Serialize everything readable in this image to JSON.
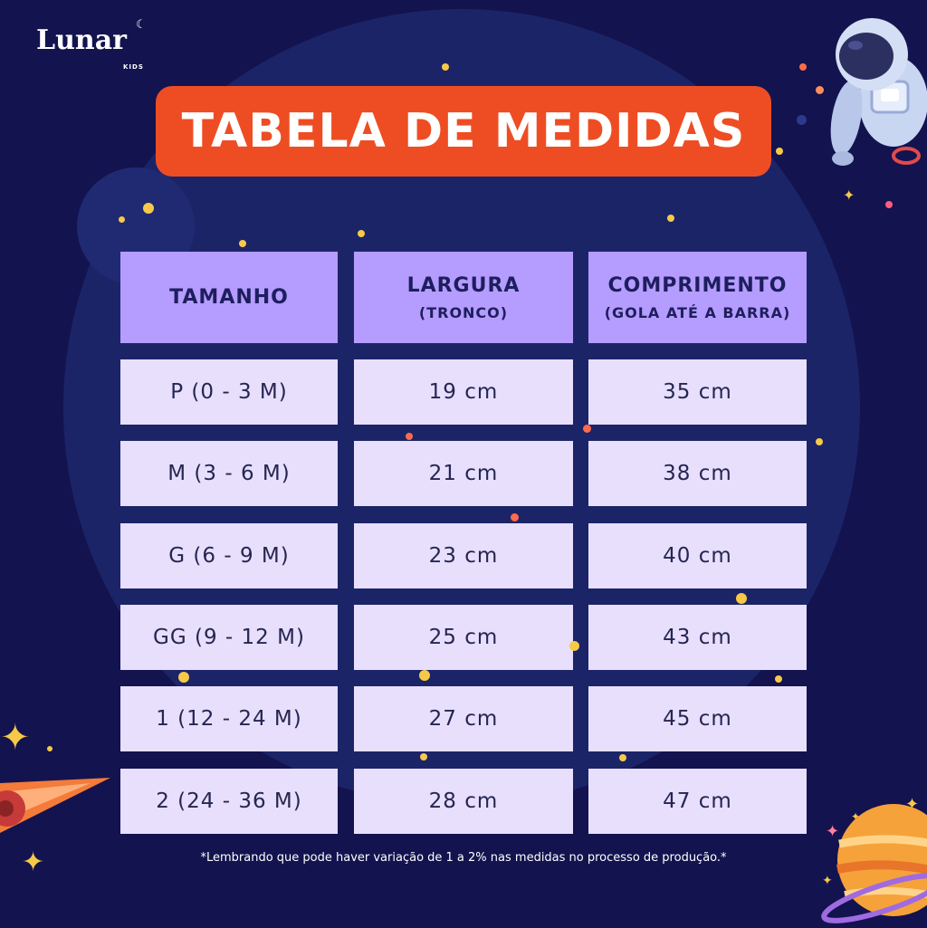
{
  "brand": {
    "name": "Lunar",
    "sub": "KIDS"
  },
  "title": "TABELA DE MEDIDAS",
  "table": {
    "headers": [
      {
        "title": "TAMANHO",
        "sub": ""
      },
      {
        "title": "LARGURA",
        "sub": "(TRONCO)"
      },
      {
        "title": "COMPRIMENTO",
        "sub": "(GOLA ATÉ A BARRA)"
      }
    ],
    "rows": [
      [
        "P  (0 - 3 M)",
        "19 cm",
        "35 cm"
      ],
      [
        "M  (3 - 6 M)",
        "21 cm",
        "38 cm"
      ],
      [
        "G  (6 - 9 M)",
        "23 cm",
        "40 cm"
      ],
      [
        "GG  (9 - 12 M)",
        "25 cm",
        "43 cm"
      ],
      [
        "1  (12 - 24 M)",
        "27 cm",
        "45 cm"
      ],
      [
        "2  (24 - 36 M)",
        "28 cm",
        "47 cm"
      ]
    ]
  },
  "footnote": "*Lembrando que pode haver variação de 1 a 2% nas medidas no processo de produção.*",
  "colors": {
    "background": "#13134f",
    "banner": "#ee4d24",
    "header_cell": "#b59cff",
    "data_cell": "#e7dffc",
    "text_dark": "#1e1e5e"
  },
  "icons": [
    "moon-icon",
    "astronaut-icon",
    "planet-icon",
    "comet-icon",
    "sparkle-icon",
    "star-dot-icon"
  ]
}
